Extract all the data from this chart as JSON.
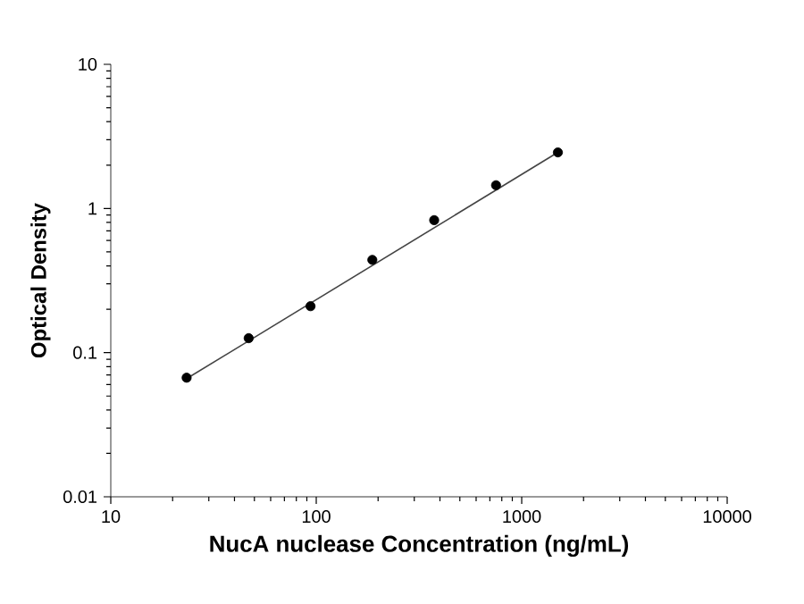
{
  "chart_data": {
    "type": "scatter",
    "xlabel": "NucA nuclease Concentration (ng/mL)",
    "ylabel": "Optical Density",
    "log": "xy",
    "grid": false,
    "xlim": [
      10,
      10000
    ],
    "ylim": [
      0.01,
      10
    ],
    "xticks": [
      10,
      100,
      1000,
      10000
    ],
    "yticks": [
      0.01,
      0.1,
      1,
      10
    ],
    "series": [
      {
        "marker": "circle",
        "color": "#000000",
        "x": [
          23.4,
          46.9,
          93.8,
          187.5,
          375,
          750,
          1500
        ],
        "values": [
          0.067,
          0.126,
          0.21,
          0.44,
          0.83,
          1.45,
          2.45
        ]
      },
      {
        "type": "line",
        "marker": "none",
        "color": "#444444",
        "x": [
          23.4,
          1500
        ],
        "values": [
          0.066,
          2.45
        ]
      }
    ]
  }
}
